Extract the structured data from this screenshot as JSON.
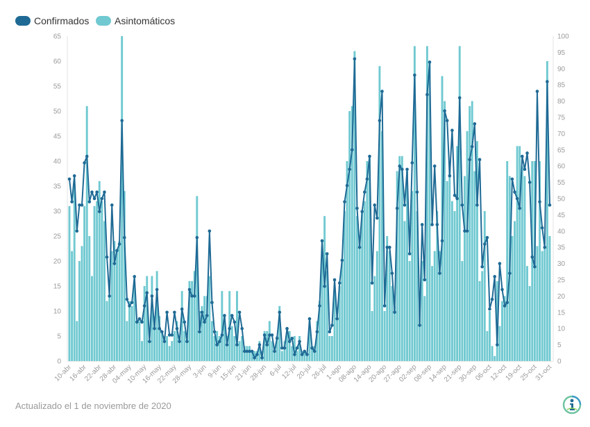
{
  "footer": {
    "updated": "Actualizado el 1 de noviembre de 2020"
  },
  "logo": {
    "icon": "person-info-logo-icon"
  },
  "chart_data": {
    "type": "bar",
    "title": "",
    "xlabel": "",
    "ylabel": "",
    "grid": false,
    "legend": {
      "placement": "top-left"
    },
    "x_tick_labels": [
      "10-abr",
      "16-abr",
      "22-abr",
      "28-abr",
      "04-may",
      "10-may",
      "16-may",
      "22-may",
      "28-may",
      "3-jun",
      "9-jun",
      "15-jun",
      "21-jun",
      "28-jun",
      "6-jul",
      "12-jul",
      "20-jul",
      "26-jul",
      "1-ago",
      "08-ago",
      "14-ago",
      "20-ago",
      "27-ago",
      "02-sep",
      "08-sep",
      "14-sep",
      "21-sep",
      "30-sep",
      "06-oct",
      "12-oct",
      "19-oct",
      "25-oct",
      "31-oct"
    ],
    "y_left": {
      "range": [
        0,
        65
      ],
      "ticks": [
        0,
        5,
        10,
        15,
        20,
        25,
        30,
        35,
        40,
        45,
        50,
        55,
        60,
        65
      ]
    },
    "y_right": {
      "range": [
        0,
        100
      ],
      "ticks": [
        0,
        5,
        10,
        15,
        20,
        25,
        30,
        35,
        40,
        45,
        50,
        55,
        60,
        65,
        70,
        75,
        80,
        85,
        90,
        95,
        100
      ]
    },
    "series": [
      {
        "name": "Confirmados",
        "type": "line",
        "axis": "right",
        "color": "#1f6a95",
        "values": [
          56,
          49,
          57,
          40,
          48,
          48,
          61,
          63,
          49,
          52,
          50,
          52,
          46,
          50,
          52,
          32,
          20,
          48,
          30,
          34,
          36,
          74,
          38,
          19,
          17,
          18,
          26,
          12,
          13,
          12,
          17,
          21,
          6,
          20,
          10,
          22,
          10,
          9,
          6,
          15,
          8,
          8,
          15,
          10,
          6,
          16,
          12,
          6,
          22,
          20,
          20,
          38,
          9,
          15,
          12,
          14,
          40,
          18,
          9,
          5,
          6,
          8,
          14,
          5,
          10,
          14,
          12,
          5,
          15,
          10,
          3,
          3,
          3,
          3,
          1,
          2,
          5,
          1,
          8,
          5,
          8,
          8,
          3,
          7,
          15,
          4,
          4,
          10,
          6,
          7,
          2,
          4,
          6,
          2,
          3,
          2,
          13,
          4,
          3,
          9,
          17,
          37,
          23,
          33,
          9,
          11,
          25,
          13,
          24,
          31,
          49,
          54,
          59,
          65,
          93,
          47,
          35,
          46,
          52,
          56,
          63,
          24,
          48,
          44,
          74,
          83,
          17,
          35,
          35,
          27,
          15,
          47,
          60,
          59,
          48,
          59,
          33,
          61,
          88,
          52,
          11,
          42,
          25,
          82,
          92,
          42,
          60,
          42,
          27,
          37,
          77,
          74,
          57,
          71,
          51,
          50,
          81,
          48,
          40,
          40,
          62,
          66,
          73,
          48,
          62,
          29,
          36,
          38,
          16,
          19,
          26,
          5,
          30,
          22,
          17,
          18,
          27,
          56,
          52,
          50,
          47,
          63,
          59,
          64,
          55,
          32,
          29,
          83,
          49,
          41,
          35,
          86,
          48
        ]
      },
      {
        "name": "Asintomáticos",
        "type": "bar",
        "axis": "left",
        "color": "#70c9d1",
        "values": [
          31,
          22,
          35,
          8,
          20,
          23,
          31,
          51,
          25,
          17,
          31,
          32,
          36,
          32,
          28,
          12,
          13,
          22,
          24,
          22,
          24,
          65,
          34,
          8,
          12,
          11,
          15,
          8,
          8,
          4,
          15,
          17,
          4,
          17,
          9,
          18,
          9,
          6,
          5,
          5,
          3,
          4,
          6,
          8,
          5,
          14,
          6,
          5,
          16,
          16,
          18,
          33,
          10,
          11,
          13,
          13,
          17,
          8,
          5,
          6,
          5,
          14,
          9,
          5,
          14,
          7,
          5,
          14,
          4,
          5,
          3,
          3,
          3,
          2,
          2,
          2,
          4,
          2,
          6,
          6,
          8,
          4,
          2,
          5,
          11,
          2,
          4,
          6,
          6,
          3,
          5,
          2,
          5,
          2,
          2,
          1,
          8,
          3,
          3,
          8,
          12,
          21,
          29,
          18,
          5,
          5,
          15,
          9,
          15,
          20,
          30,
          40,
          50,
          51,
          62,
          29,
          24,
          30,
          32,
          40,
          41,
          10,
          17,
          22,
          59,
          46,
          10,
          25,
          22,
          15,
          11,
          38,
          41,
          41,
          28,
          38,
          20,
          34,
          63,
          30,
          14,
          20,
          13,
          63,
          60,
          19,
          22,
          30,
          22,
          57,
          52,
          36,
          40,
          32,
          30,
          43,
          63,
          20,
          37,
          46,
          51,
          52,
          38,
          44,
          16,
          18,
          30,
          6,
          10,
          3,
          1,
          16,
          7,
          12,
          13,
          40,
          37,
          25,
          28,
          43,
          43,
          39,
          37,
          19,
          15,
          40,
          40,
          23,
          40,
          22,
          23,
          60,
          25
        ]
      }
    ]
  }
}
